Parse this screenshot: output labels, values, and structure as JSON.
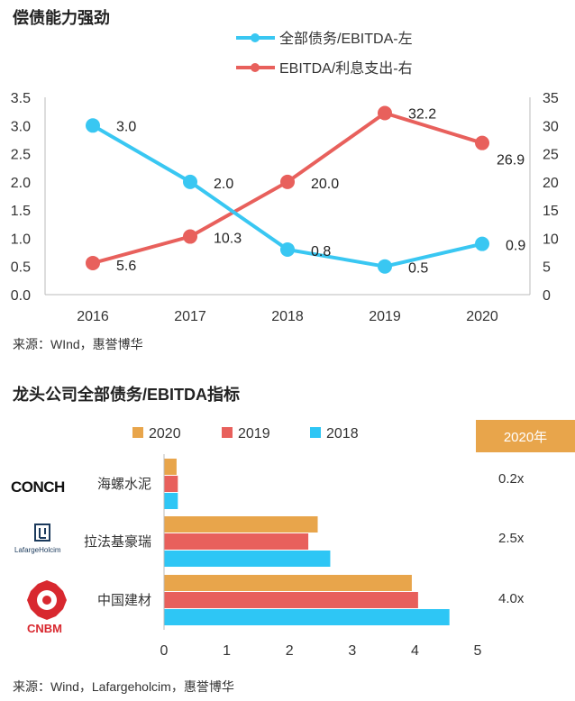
{
  "top": {
    "title": "偿债能力强劲",
    "source": "来源：WInd，惠誉博华"
  },
  "bottom": {
    "title": "龙头公司全部债务/EBITDA指标",
    "source": "来源：Wind，Lafargeholcim，惠誉博华",
    "badge": "2020年",
    "logos": {
      "conch": "CONCH",
      "lafarge": "LafargeHolcim",
      "cnbm": "CNBM"
    }
  },
  "colors": {
    "blue": "#39c7f2",
    "red": "#e8605c",
    "orange": "#e8a54b",
    "bar_blue": "#2ec6f5",
    "bar_red": "#e8605c",
    "bar_orange": "#e8a54b"
  },
  "chart_data": [
    {
      "type": "line",
      "categories": [
        "2016",
        "2017",
        "2018",
        "2019",
        "2020"
      ],
      "series": [
        {
          "name": "全部债务/EBITDA-左",
          "axis": "left",
          "values": [
            3.0,
            2.0,
            0.8,
            0.5,
            0.9
          ],
          "labels": [
            "3.0",
            "2.0",
            "0.8",
            "0.5",
            "0.9"
          ]
        },
        {
          "name": "EBITDA/利息支出-右",
          "axis": "right",
          "values": [
            5.6,
            10.3,
            20.0,
            32.2,
            26.9
          ],
          "labels": [
            "5.6",
            "10.3",
            "20.0",
            "32.2",
            "26.9"
          ]
        }
      ],
      "y_left": {
        "min": 0,
        "max": 3.5,
        "ticks": [
          "0.0",
          "0.5",
          "1.0",
          "1.5",
          "2.0",
          "2.5",
          "3.0",
          "3.5"
        ]
      },
      "y_right": {
        "min": 0,
        "max": 35,
        "ticks": [
          "0",
          "5",
          "10",
          "15",
          "20",
          "25",
          "30",
          "35"
        ]
      },
      "legend": "top-right",
      "grid": false
    },
    {
      "type": "bar",
      "orientation": "horizontal",
      "categories": [
        "海螺水泥",
        "拉法基豪瑞",
        "中国建材"
      ],
      "series": [
        {
          "name": "2020",
          "values": [
            0.2,
            2.45,
            3.95
          ]
        },
        {
          "name": "2019",
          "values": [
            0.22,
            2.3,
            4.05
          ]
        },
        {
          "name": "2018",
          "values": [
            0.22,
            2.65,
            4.55
          ]
        }
      ],
      "value_labels_2020": [
        "0.2x",
        "2.5x",
        "4.0x"
      ],
      "x_axis": {
        "min": 0,
        "max": 5,
        "ticks": [
          "0",
          "1",
          "2",
          "3",
          "4",
          "5"
        ]
      },
      "legend": "top"
    }
  ]
}
